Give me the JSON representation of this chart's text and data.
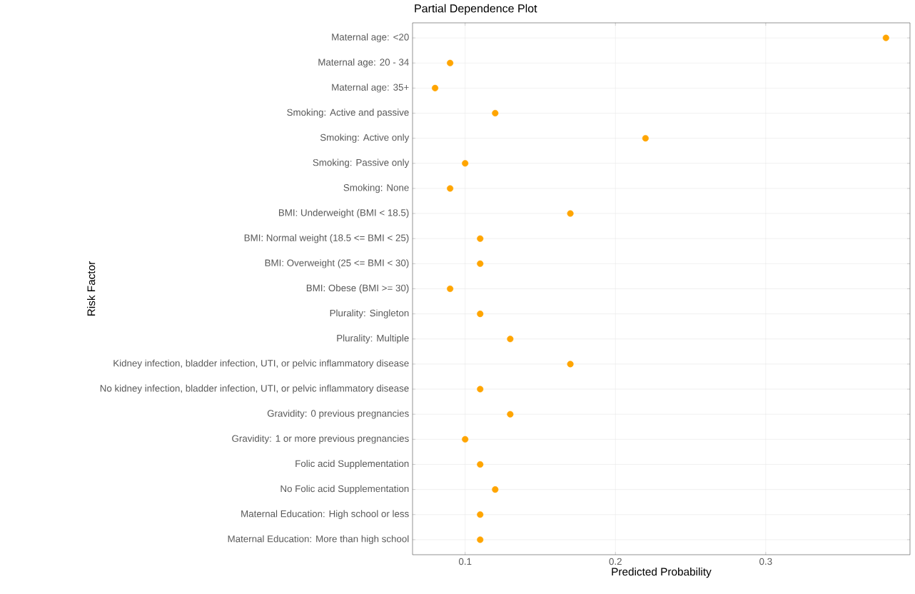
{
  "chart_data": {
    "type": "scatter",
    "title": "Partial Dependence Plot",
    "xlabel": "Predicted Probability",
    "ylabel": "Risk Factor",
    "orientation": "horizontal",
    "categories": [
      "Maternal age: <20",
      "Maternal age: 20 - 34",
      "Maternal age: 35+",
      "Smoking: Active and passive",
      "Smoking: Active only",
      "Smoking: Passive only",
      "Smoking: None",
      "BMI: Underweight (BMI < 18.5)",
      "BMI: Normal weight (18.5 <= BMI < 25)",
      "BMI: Overweight (25 <= BMI < 30)",
      "BMI: Obese (BMI >= 30)",
      "Plurality: Singleton",
      "Plurality: Multiple",
      "Kidney infection, bladder infection, UTI, or pelvic inflammatory disease",
      "No kidney infection, bladder infection, UTI, or pelvic inflammatory disease",
      "Gravidity: 0 previous pregnancies",
      "Gravidity: 1 or more previous pregnancies",
      "Folic acid Supplementation",
      "No Folic acid Supplementation",
      "Maternal Education: High school or less",
      "Maternal Education: More than high school"
    ],
    "values": [
      0.38,
      0.09,
      0.08,
      0.12,
      0.22,
      0.1,
      0.09,
      0.17,
      0.11,
      0.11,
      0.09,
      0.11,
      0.13,
      0.17,
      0.11,
      0.13,
      0.1,
      0.11,
      0.12,
      0.11,
      0.11
    ],
    "color": "#ffa500",
    "marker": "circle",
    "xlim": [
      0.065,
      0.396
    ],
    "xticks": [
      0.1,
      0.2,
      0.3
    ],
    "grid": true
  }
}
